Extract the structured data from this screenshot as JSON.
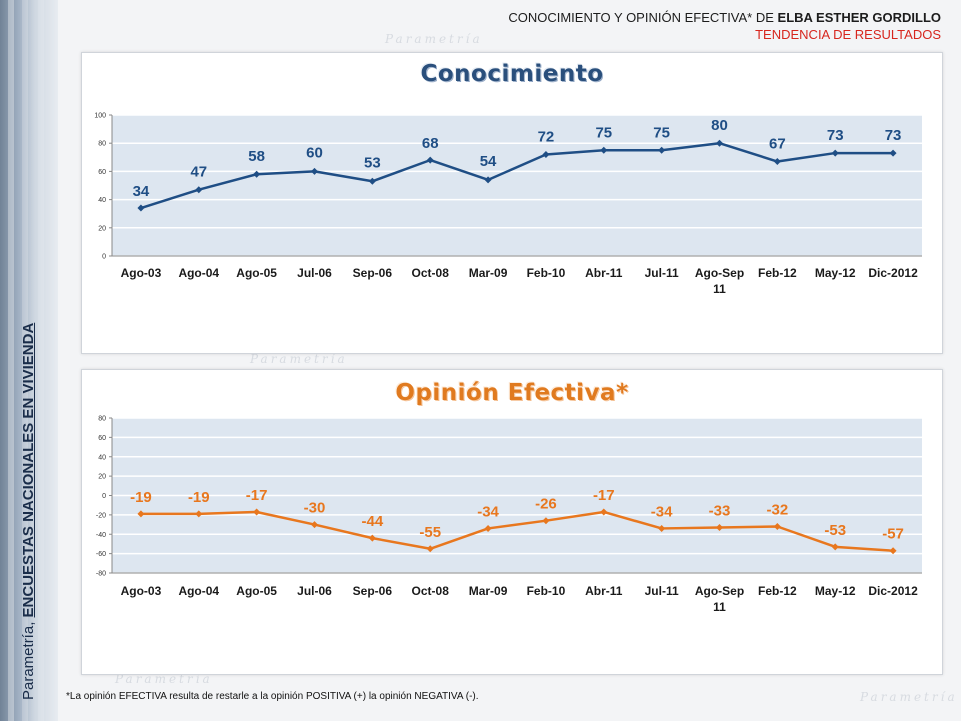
{
  "header": {
    "title_prefix": "CONOCIMIENTO Y OPINIÓN EFECTIVA* DE ",
    "title_name": "ELBA ESTHER GORDILLO",
    "subtitle": "TENDENCIA DE RESULTADOS"
  },
  "side_label": {
    "prefix": "Parametría, ",
    "strong": "ENCUESTAS NACIONALES EN VIVIENDA"
  },
  "watermark_text": "Parametría",
  "footnote": "*La opinión EFECTIVA resulta de restarle a la opinión POSITIVA (+) la opinión NEGATIVA (-).",
  "colors": {
    "conocimiento": "#1f4e85",
    "opinion": "#e8771e",
    "plot_bg": "#dde6f0",
    "grid": "#ffffff"
  },
  "chart_data": [
    {
      "type": "line",
      "title": "Conocimiento",
      "categories": [
        "Ago-03",
        "Ago-04",
        "Ago-05",
        "Jul-06",
        "Sep-06",
        "Oct-08",
        "Mar-09",
        "Feb-10",
        "Abr-11",
        "Jul-11",
        "Ago-Sep 11",
        "Feb-12",
        "May-12",
        "Dic-2012"
      ],
      "values": [
        34,
        47,
        58,
        60,
        53,
        68,
        54,
        72,
        75,
        75,
        80,
        67,
        73,
        73
      ],
      "yticks": [
        "0",
        "20",
        "40",
        "60",
        "80",
        "100"
      ],
      "ylim": [
        0,
        100
      ],
      "xlabel": "",
      "ylabel": "",
      "grid": true,
      "data_labels": [
        "34",
        "47",
        "58",
        "60",
        "53",
        "68",
        "54",
        "72",
        "75",
        "75",
        "80",
        "67",
        "73",
        "73"
      ]
    },
    {
      "type": "line",
      "title": "Opinión Efectiva*",
      "categories": [
        "Ago-03",
        "Ago-04",
        "Ago-05",
        "Jul-06",
        "Sep-06",
        "Oct-08",
        "Mar-09",
        "Feb-10",
        "Abr-11",
        "Jul-11",
        "Ago-Sep 11",
        "Feb-12",
        "May-12",
        "Dic-2012"
      ],
      "values": [
        -19,
        -19,
        -17,
        -30,
        -44,
        -55,
        -34,
        -26,
        -17,
        -34,
        -33,
        -32,
        -53,
        -57
      ],
      "yticks": [
        "-80",
        "-60",
        "-40",
        "-20",
        "0",
        "20",
        "40",
        "60",
        "80"
      ],
      "ylim": [
        -80,
        80
      ],
      "xlabel": "",
      "ylabel": "",
      "grid": true,
      "data_labels": [
        "-19",
        "-19",
        "-17",
        "-30",
        "-44",
        "-55",
        "-34",
        "-26",
        "-17",
        "-34",
        "-33",
        "-32",
        "-53",
        "-57"
      ]
    }
  ]
}
